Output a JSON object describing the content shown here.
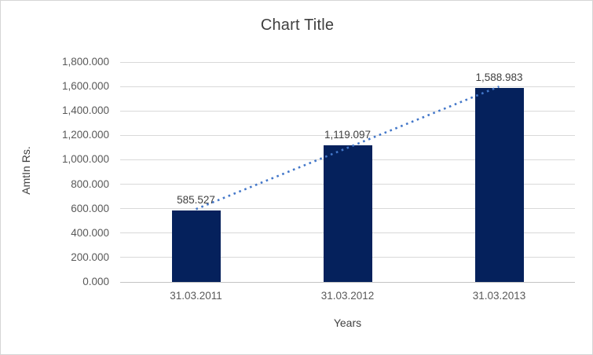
{
  "chart_data": {
    "type": "bar",
    "title": "Chart Title",
    "xlabel": "Years",
    "ylabel": "AmtIn Rs.",
    "categories": [
      "31.03.2011",
      "31.03.2012",
      "31.03.2013"
    ],
    "values": [
      585.527,
      1119.097,
      1588.983
    ],
    "data_labels": [
      "585.527",
      "1,119.097",
      "1,588.983"
    ],
    "ylim": [
      0,
      1800
    ],
    "ytick_step": 200,
    "ytick_labels": [
      "0.000",
      "200.000",
      "400.000",
      "600.000",
      "800.000",
      "1,000.000",
      "1,200.000",
      "1,400.000",
      "1,600.000",
      "1,800.000"
    ],
    "grid": true,
    "legend": "none",
    "bar_color": "#05215C",
    "trendline": {
      "type": "linear",
      "style": "dotted",
      "color": "#4377C9"
    }
  }
}
